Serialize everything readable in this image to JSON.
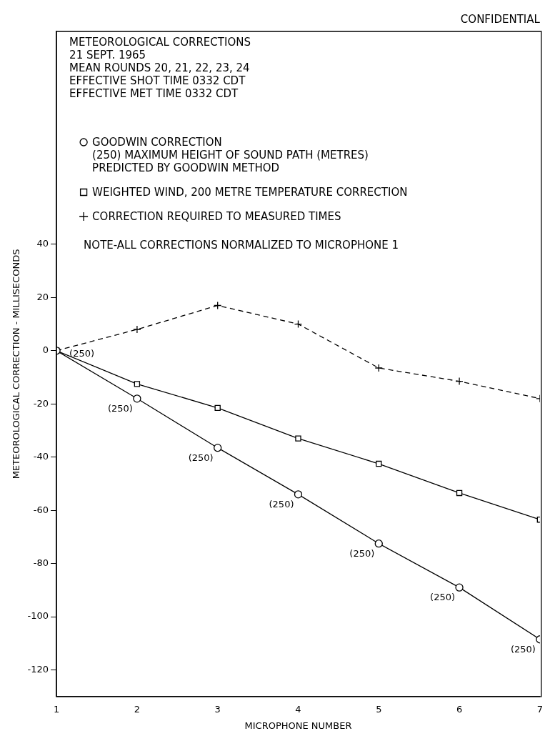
{
  "chart_data": {
    "type": "line",
    "title": "METEOROLOGICAL CORRECTIONS",
    "subtitle": "21 SEPT. 1965",
    "xlabel": "MICROPHONE NUMBER",
    "ylabel": "METEOROLOGICAL CORRECTION - MILLISECONDS",
    "x": [
      1,
      2,
      3,
      4,
      5,
      6,
      7
    ],
    "series": [
      {
        "name": "GOODWIN CORRECTION",
        "color": "#000000",
        "marker": "circle",
        "line_style": "solid",
        "values": [
          0,
          -18,
          -36.5,
          -54,
          -72.5,
          -89,
          -108.5
        ]
      },
      {
        "name": "WEIGHTED WIND, 200 METRE TEMPERATURE CORRECTION",
        "color": "#000000",
        "marker": "square",
        "line_style": "solid",
        "values": [
          0,
          -12.5,
          -21.5,
          -33,
          -42.5,
          -53.5,
          -63.5
        ]
      },
      {
        "name": "CORRECTION REQUIRED TO MEASURED TIMES",
        "color": "#000000",
        "marker": "cross",
        "line_style": "dashed",
        "values": [
          0,
          8,
          17,
          10,
          -6.5,
          -11.5,
          -18
        ]
      }
    ],
    "xlim": [
      1,
      7
    ],
    "xticks": [
      1,
      2,
      3,
      4,
      5,
      6,
      7
    ],
    "ylim": [
      -130,
      120
    ],
    "yticks": [
      -120,
      -100,
      -80,
      -60,
      -40,
      -20,
      0,
      20,
      40
    ],
    "grid": false,
    "legend": "top left",
    "annotations": [
      "MEAN ROUNDS 20, 21, 22, 23, 24",
      "EFFECTIVE SHOT TIME 0332 CDT",
      "EFFECTIVE MET TIME 0332 CDT",
      "(250) MAXIMUM HEIGHT OF SOUND PATH (METRES)",
      "PREDICTED BY GOODWIN METHOD",
      "NOTE-ALL CORRECTIONS NORMALIZED TO MICROPHONE 1",
      "CONFIDENTIAL",
      {
        "text": "(250)",
        "x": 1,
        "y": 0
      },
      {
        "text": "(250)",
        "x": 2,
        "y": -18
      },
      {
        "text": "(250)",
        "x": 3,
        "y": -36.5
      },
      {
        "text": "(250)",
        "x": 4,
        "y": -54
      },
      {
        "text": "(250)",
        "x": 5,
        "y": -72.5
      },
      {
        "text": "(250)",
        "x": 6,
        "y": -89
      },
      {
        "text": "(250)",
        "x": 7,
        "y": -108.5
      }
    ]
  }
}
